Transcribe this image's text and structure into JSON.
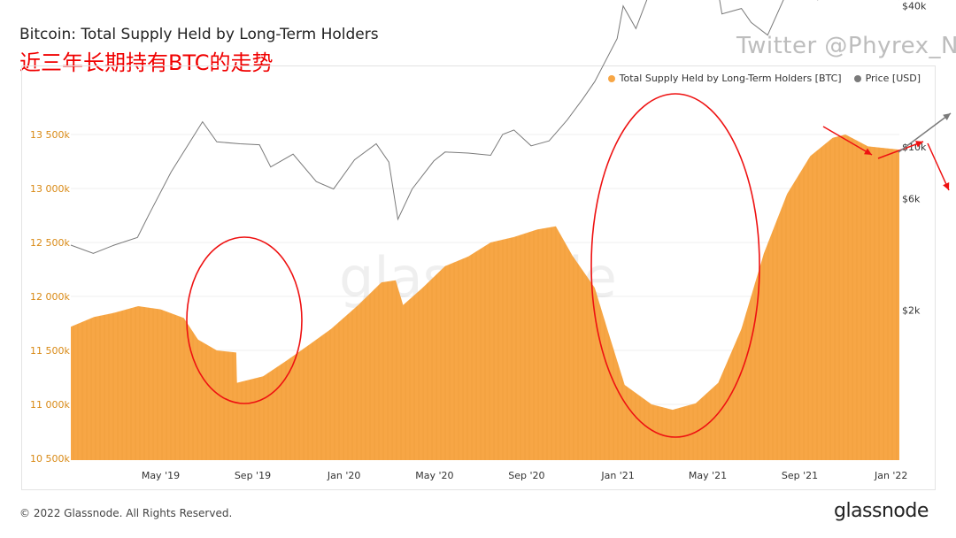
{
  "header": {
    "title": "Bitcoin: Total Supply Held by Long-Term Holders",
    "subtitle": "近三年长期持有BTC的走势",
    "twitter": "Twitter @Phyrex_Ni"
  },
  "footer": {
    "copyright": "© 2022 Glassnode. All Rights Reserved.",
    "brand": "glassnode",
    "watermark": "glassnode"
  },
  "colors": {
    "supply": "#f7a645",
    "price": "#7a7a7a",
    "left_axis_text": "#d98a16",
    "annotation": "#ee1111"
  },
  "chart_data": {
    "type": "area",
    "title": "Bitcoin: Total Supply Held by Long-Term Holders",
    "x_ticks": [
      "May '19",
      "Sep '19",
      "Jan '20",
      "May '20",
      "Sep '20",
      "Jan '21",
      "May '21",
      "Sep '21",
      "Jan '22"
    ],
    "x_tick_dates": [
      "2019-05-01",
      "2019-09-01",
      "2020-01-01",
      "2020-05-01",
      "2020-09-01",
      "2021-01-01",
      "2021-05-01",
      "2021-09-01",
      "2022-01-01"
    ],
    "x_range": [
      "2019-01-01",
      "2022-01-12"
    ],
    "left_axis": {
      "label": "Total Supply Held by Long-Term Holders [BTC]",
      "ticks": [
        "10 500k",
        "11 000k",
        "11 500k",
        "12 000k",
        "12 500k",
        "13 000k",
        "13 500k"
      ],
      "tick_values": [
        10500000,
        11000000,
        11500000,
        12000000,
        12500000,
        13000000,
        13500000
      ],
      "ylim": [
        10500000,
        13950000
      ]
    },
    "right_axis": {
      "label": "Price [USD]",
      "scale": "log",
      "ticks": [
        "$2k",
        "$6k",
        "$10k",
        "$40k"
      ],
      "tick_values": [
        2000,
        6000,
        10000,
        40000
      ]
    },
    "legend": [
      {
        "name": "Total Supply Held by Long-Term Holders [BTC]",
        "color": "#f7a645"
      },
      {
        "name": "Price [USD]",
        "color": "#7a7a7a"
      }
    ],
    "series": [
      {
        "name": "Total Supply Held by Long-Term Holders [BTC]",
        "axis": "left",
        "style": "area",
        "points": [
          [
            "2019-01-01",
            11720000
          ],
          [
            "2019-02-01",
            11810000
          ],
          [
            "2019-03-01",
            11850000
          ],
          [
            "2019-04-01",
            11910000
          ],
          [
            "2019-05-01",
            11880000
          ],
          [
            "2019-06-01",
            11800000
          ],
          [
            "2019-06-20",
            11600000
          ],
          [
            "2019-07-15",
            11500000
          ],
          [
            "2019-08-10",
            11480000
          ],
          [
            "2019-08-11",
            11200000
          ],
          [
            "2019-09-15",
            11260000
          ],
          [
            "2019-10-15",
            11400000
          ],
          [
            "2019-11-15",
            11550000
          ],
          [
            "2019-12-15",
            11700000
          ],
          [
            "2020-01-20",
            11920000
          ],
          [
            "2020-02-20",
            12130000
          ],
          [
            "2020-03-10",
            12150000
          ],
          [
            "2020-03-20",
            11920000
          ],
          [
            "2020-04-15",
            12080000
          ],
          [
            "2020-05-15",
            12280000
          ],
          [
            "2020-06-15",
            12370000
          ],
          [
            "2020-07-15",
            12500000
          ],
          [
            "2020-08-15",
            12550000
          ],
          [
            "2020-09-15",
            12620000
          ],
          [
            "2020-10-10",
            12650000
          ],
          [
            "2020-11-01",
            12380000
          ],
          [
            "2020-12-01",
            12080000
          ],
          [
            "2020-12-20",
            11650000
          ],
          [
            "2021-01-10",
            11180000
          ],
          [
            "2021-02-15",
            11000000
          ],
          [
            "2021-03-15",
            10950000
          ],
          [
            "2021-04-15",
            11010000
          ],
          [
            "2021-05-15",
            11200000
          ],
          [
            "2021-06-15",
            11700000
          ],
          [
            "2021-07-15",
            12400000
          ],
          [
            "2021-08-15",
            12950000
          ],
          [
            "2021-09-15",
            13300000
          ],
          [
            "2021-10-15",
            13470000
          ],
          [
            "2021-11-01",
            13500000
          ],
          [
            "2021-12-01",
            13390000
          ],
          [
            "2022-01-12",
            13360000
          ]
        ]
      },
      {
        "name": "Price [USD]",
        "axis": "right",
        "style": "line",
        "points": [
          [
            "2019-01-01",
            3800
          ],
          [
            "2019-01-31",
            3500
          ],
          [
            "2019-02-28",
            3800
          ],
          [
            "2019-03-31",
            4100
          ],
          [
            "2019-04-15",
            5100
          ],
          [
            "2019-05-15",
            7800
          ],
          [
            "2019-06-26",
            12800
          ],
          [
            "2019-07-15",
            10500
          ],
          [
            "2019-08-15",
            10300
          ],
          [
            "2019-09-10",
            10200
          ],
          [
            "2019-09-25",
            8200
          ],
          [
            "2019-10-25",
            9300
          ],
          [
            "2019-11-25",
            7100
          ],
          [
            "2019-12-18",
            6600
          ],
          [
            "2020-01-15",
            8800
          ],
          [
            "2020-02-13",
            10300
          ],
          [
            "2020-03-01",
            8600
          ],
          [
            "2020-03-13",
            4900
          ],
          [
            "2020-04-01",
            6600
          ],
          [
            "2020-04-30",
            8700
          ],
          [
            "2020-05-15",
            9500
          ],
          [
            "2020-06-15",
            9400
          ],
          [
            "2020-07-15",
            9200
          ],
          [
            "2020-07-31",
            11300
          ],
          [
            "2020-08-15",
            11800
          ],
          [
            "2020-09-07",
            10100
          ],
          [
            "2020-10-01",
            10600
          ],
          [
            "2020-10-25",
            13000
          ],
          [
            "2020-11-15",
            16000
          ],
          [
            "2020-12-01",
            19000
          ],
          [
            "2020-12-31",
            29000
          ],
          [
            "2021-01-08",
            40000
          ],
          [
            "2021-01-25",
            32000
          ],
          [
            "2021-02-15",
            48000
          ],
          [
            "2021-03-14",
            60000
          ],
          [
            "2021-03-25",
            52000
          ],
          [
            "2021-04-14",
            63000
          ],
          [
            "2021-04-25",
            50000
          ],
          [
            "2021-05-10",
            57000
          ],
          [
            "2021-05-20",
            37000
          ],
          [
            "2021-06-15",
            39000
          ],
          [
            "2021-06-28",
            34000
          ],
          [
            "2021-07-20",
            30000
          ],
          [
            "2021-08-15",
            46000
          ],
          [
            "2021-09-06",
            51000
          ],
          [
            "2021-09-25",
            42500
          ],
          [
            "2021-10-20",
            65000
          ],
          [
            "2021-11-09",
            68000
          ],
          [
            "2021-11-25",
            57000
          ],
          [
            "2021-12-05",
            49000
          ],
          [
            "2021-12-28",
            47000
          ],
          [
            "2022-01-12",
            42500
          ]
        ]
      }
    ],
    "annotations": [
      {
        "type": "ellipse",
        "note": "circle around mid-2019 dip"
      },
      {
        "type": "ellipse",
        "note": "circle around early-2021 dip"
      },
      {
        "type": "arrow",
        "note": "red arrows near the right edge"
      }
    ]
  }
}
